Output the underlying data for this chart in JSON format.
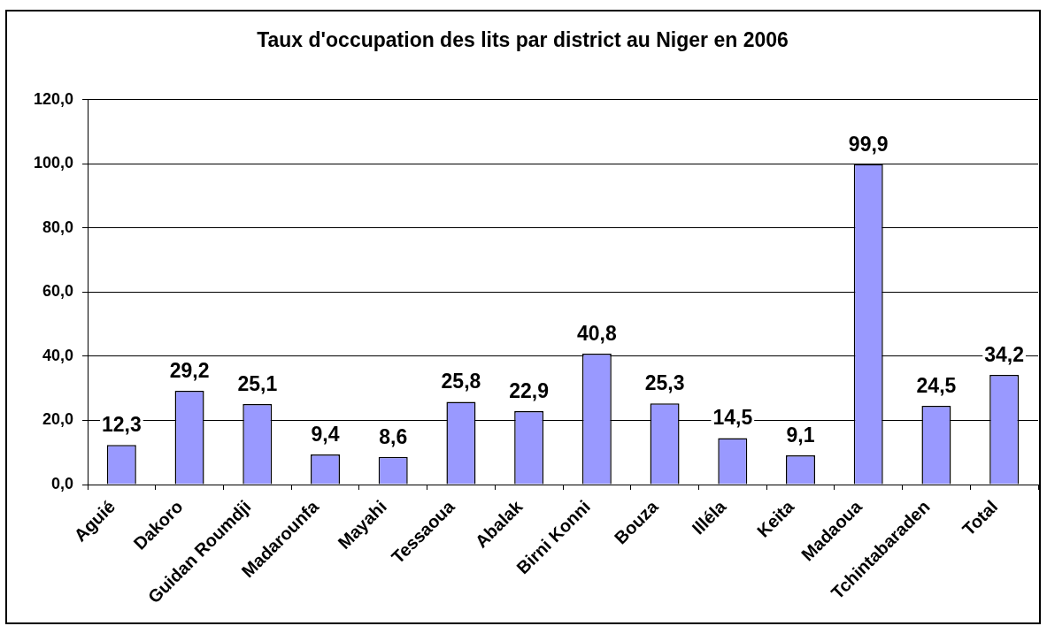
{
  "chart_data": {
    "type": "bar",
    "title": "Taux d'occupation des lits par district au Niger en 2006",
    "categories": [
      "Aguié",
      "Dakoro",
      "Guidan Roumdji",
      "Madarounfa",
      "Mayahi",
      "Tessaoua",
      "Abalak",
      "Birni Konni",
      "Bouza",
      "Illéla",
      "Keita",
      "Madaoua",
      "Tchintabaraden",
      "Total"
    ],
    "values": [
      12.3,
      29.2,
      25.1,
      9.4,
      8.6,
      25.8,
      22.9,
      40.8,
      25.3,
      14.5,
      9.1,
      99.9,
      24.5,
      34.2
    ],
    "value_labels": [
      "12,3",
      "29,2",
      "25,1",
      "9,4",
      "8,6",
      "25,8",
      "22,9",
      "40,8",
      "25,3",
      "14,5",
      "9,1",
      "99,9",
      "24,5",
      "34,2"
    ],
    "color": "#9999ff",
    "ylim": [
      0,
      120
    ],
    "yticks": [
      {
        "value": 0,
        "label": "0,0"
      },
      {
        "value": 20,
        "label": "20,0"
      },
      {
        "value": 40,
        "label": "40,0"
      },
      {
        "value": 60,
        "label": "60,0"
      },
      {
        "value": 80,
        "label": "80,0"
      },
      {
        "value": 100,
        "label": "100,0"
      },
      {
        "value": 120,
        "label": "120,0"
      }
    ],
    "grid": "y"
  }
}
